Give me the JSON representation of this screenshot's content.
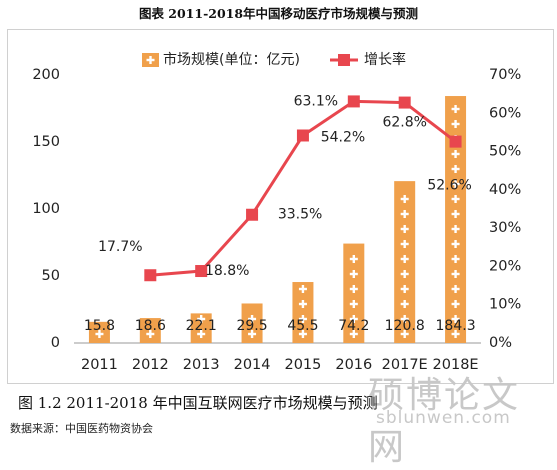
{
  "page_title": "图表 2011-2018年中国移动医疗市场规模与预测",
  "caption": "图 1.2 2011-2018 年中国互联网医疗市场规模与预测",
  "source": "数据来源：中国医药物资协会",
  "watermark": {
    "cn": "硕博论文网",
    "url": "sblunwen.com"
  },
  "colors": {
    "bar": "#f0a04b",
    "bar_plus": "#ffffff",
    "line": "#e8464e",
    "axis_text": "#222222",
    "grid": "#dddddd"
  },
  "chart_data": {
    "type": "bar",
    "categories": [
      "2011",
      "2012",
      "2013",
      "2014",
      "2015",
      "2016",
      "2017E",
      "2018E"
    ],
    "series": [
      {
        "name": "市场规模(单位：亿元)",
        "type": "bar",
        "axis": "left",
        "values": [
          15.8,
          18.6,
          22.1,
          29.5,
          45.5,
          74.2,
          120.8,
          184.3
        ],
        "labels": [
          "15.8",
          "18.6",
          "22.1",
          "29.5",
          "45.5",
          "74.2",
          "120.8",
          "184.3"
        ]
      },
      {
        "name": "增长率",
        "type": "line",
        "axis": "right",
        "values": [
          null,
          17.7,
          18.8,
          33.5,
          54.2,
          63.1,
          62.8,
          52.6
        ],
        "labels": [
          "",
          "17.7%",
          "18.8%",
          "33.5%",
          "54.2%",
          "63.1%",
          "62.8%",
          "52.6%"
        ]
      }
    ],
    "ylim": [
      0,
      200
    ],
    "yticks": [
      "0",
      "50",
      "100",
      "150",
      "200"
    ],
    "y2lim": [
      0,
      70
    ],
    "y2ticks": [
      "0%",
      "10%",
      "20%",
      "30%",
      "40%",
      "50%",
      "60%",
      "70%"
    ],
    "legend_position": "top",
    "grid": false
  }
}
